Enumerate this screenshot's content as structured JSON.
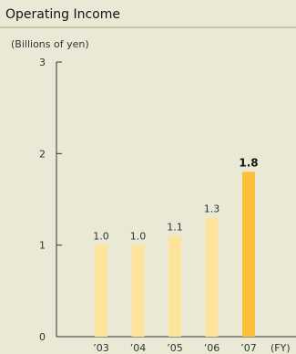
{
  "chart_data": {
    "type": "bar",
    "title": "Operating Income",
    "ylabel": "(Billions of yen)",
    "xlabel": "(FY)",
    "categories": [
      "’03",
      "’04",
      "’05",
      "’06",
      "’07"
    ],
    "values": [
      1.0,
      1.0,
      1.1,
      1.3,
      1.8
    ],
    "value_labels": [
      "1.0",
      "1.0",
      "1.1",
      "1.3",
      "1.8"
    ],
    "y_ticks": [
      "0",
      "1",
      "2",
      "3"
    ],
    "ylim": [
      0,
      3
    ],
    "grid": false,
    "legend": "none",
    "colors": {
      "bar": "#fde49a",
      "highlight_bar": "#fbbf3a",
      "axis": "#333333"
    },
    "highlight_index": 4
  }
}
